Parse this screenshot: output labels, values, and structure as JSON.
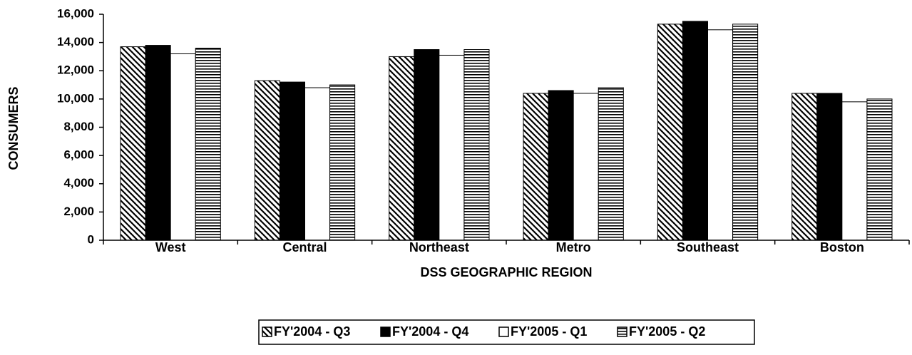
{
  "chart_data": {
    "type": "bar",
    "x_label": "DSS GEOGRAPHIC REGION",
    "y_label": "CONSUMERS",
    "categories": [
      "West",
      "Central",
      "Northeast",
      "Metro",
      "Southeast",
      "Boston"
    ],
    "series": [
      {
        "name": "FY'2004 - Q3",
        "color": "#000000",
        "pattern": "diagonal",
        "values": [
          13700,
          11300,
          13000,
          10400,
          15300,
          10400
        ]
      },
      {
        "name": "FY'2004 - Q4",
        "color": "#000000",
        "pattern": "solid",
        "values": [
          13800,
          11200,
          13500,
          10600,
          15500,
          10400
        ]
      },
      {
        "name": "FY'2005 - Q1",
        "color": "#ffffff",
        "pattern": "solid",
        "values": [
          13200,
          10800,
          13100,
          10400,
          14900,
          9800
        ]
      },
      {
        "name": "FY'2005 - Q2",
        "color": "#000000",
        "pattern": "horizontal",
        "values": [
          13600,
          11000,
          13500,
          10800,
          15300,
          10000
        ]
      }
    ],
    "ylim": [
      0,
      16000
    ],
    "yticks": [
      0,
      {
        "value": 2000,
        "label": "2,000"
      },
      {
        "value": 4000,
        "label": "4,000"
      },
      {
        "value": 6000,
        "label": "6,000"
      },
      {
        "value": 8000,
        "label": "8,000"
      },
      {
        "value": 10000,
        "label": "10,000"
      },
      {
        "value": 12000,
        "label": "12,000"
      },
      {
        "value": 14000,
        "label": "14,000"
      },
      {
        "value": 16000,
        "label": "16,000"
      }
    ],
    "grid": false,
    "legend": "bottom"
  }
}
